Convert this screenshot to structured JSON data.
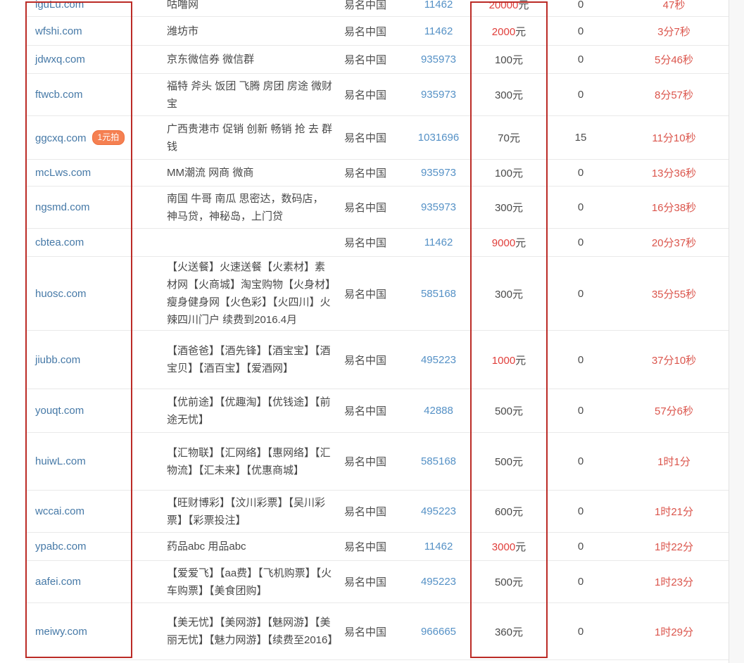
{
  "palette": {
    "domain_link_blue": "#4679a7",
    "id_link_blue": "#5591c6",
    "text_dark": "#4a4a4a",
    "price_highlight_red": "#e03e3a",
    "time_red": "#db554c",
    "annotation_box_red": "#bb2b26",
    "badge_orange": "#f58052",
    "row_separator": "#e9e9e9"
  },
  "badge": {
    "label": "1元拍"
  },
  "table": {
    "price_unit": "元",
    "rows": [
      {
        "domain": "iguLu.com",
        "badge": false,
        "desc": "咕噜网",
        "platform": "易名中国",
        "id": "11462",
        "price": "20000",
        "price_red": true,
        "bids": "0",
        "time": "47秒"
      },
      {
        "domain": "wfshi.com",
        "badge": false,
        "desc": "潍坊市",
        "platform": "易名中国",
        "id": "11462",
        "price": "2000",
        "price_red": true,
        "bids": "0",
        "time": "3分7秒"
      },
      {
        "domain": "jdwxq.com",
        "badge": false,
        "desc": "京东微信券 微信群",
        "platform": "易名中国",
        "id": "935973",
        "price": "100",
        "price_red": false,
        "bids": "0",
        "time": "5分46秒"
      },
      {
        "domain": "ftwcb.com",
        "badge": false,
        "desc": "福特 斧头 饭团 飞腾 房团 房途 微财宝",
        "platform": "易名中国",
        "id": "935973",
        "price": "300",
        "price_red": false,
        "bids": "0",
        "time": "8分57秒"
      },
      {
        "domain": "ggcxq.com",
        "badge": true,
        "desc": "广西贵港市 促销 创新 畅销 抢 去 群钱",
        "platform": "易名中国",
        "id": "1031696",
        "price": "70",
        "price_red": false,
        "bids": "15",
        "time": "11分10秒"
      },
      {
        "domain": "mcLws.com",
        "badge": false,
        "desc": "MM潮流 网商 微商",
        "platform": "易名中国",
        "id": "935973",
        "price": "100",
        "price_red": false,
        "bids": "0",
        "time": "13分36秒"
      },
      {
        "domain": "ngsmd.com",
        "badge": false,
        "desc": "南国 牛哥 南瓜 思密达，数码店，神马贷，神秘岛，上门贷",
        "platform": "易名中国",
        "id": "935973",
        "price": "300",
        "price_red": false,
        "bids": "0",
        "time": "16分38秒"
      },
      {
        "domain": "cbtea.com",
        "badge": false,
        "desc": "",
        "platform": "易名中国",
        "id": "11462",
        "price": "9000",
        "price_red": true,
        "bids": "0",
        "time": "20分37秒"
      },
      {
        "domain": "huosc.com",
        "badge": false,
        "desc": "【火送餐】火速送餐【火素材】素材网【火商城】淘宝购物【火身材】瘦身健身网【火色彩】【火四川】火辣四川门户 续费到2016.4月",
        "platform": "易名中国",
        "id": "585168",
        "price": "300",
        "price_red": false,
        "bids": "0",
        "time": "35分55秒"
      },
      {
        "domain": "jiubb.com",
        "badge": false,
        "desc": "【酒爸爸】【酒先锋】【酒宝宝】【酒宝贝】【酒百宝】【爱酒网】",
        "platform": "易名中国",
        "id": "495223",
        "price": "1000",
        "price_red": true,
        "bids": "0",
        "time": "37分10秒"
      },
      {
        "domain": "youqt.com",
        "badge": false,
        "desc": "【优前途】【优趣淘】【优钱途】【前途无忧】",
        "platform": "易名中国",
        "id": "42888",
        "price": "500",
        "price_red": false,
        "bids": "0",
        "time": "57分6秒"
      },
      {
        "domain": "huiwL.com",
        "badge": false,
        "desc": "【汇物联】【汇网络】【惠网络】【汇物流】【汇未来】【优惠商城】",
        "platform": "易名中国",
        "id": "585168",
        "price": "500",
        "price_red": false,
        "bids": "0",
        "time": "1时1分"
      },
      {
        "domain": "wccai.com",
        "badge": false,
        "desc": "【旺财博彩】【汶川彩票】【吴川彩票】【彩票投注】",
        "platform": "易名中国",
        "id": "495223",
        "price": "600",
        "price_red": false,
        "bids": "0",
        "time": "1时21分"
      },
      {
        "domain": "ypabc.com",
        "badge": false,
        "desc": "药品abc 用品abc",
        "platform": "易名中国",
        "id": "11462",
        "price": "3000",
        "price_red": true,
        "bids": "0",
        "time": "1时22分"
      },
      {
        "domain": "aafei.com",
        "badge": false,
        "desc": "【爱爱飞】【aa费】【飞机购票】【火车购票】【美食团购】",
        "platform": "易名中国",
        "id": "495223",
        "price": "500",
        "price_red": false,
        "bids": "0",
        "time": "1时23分"
      },
      {
        "domain": "meiwy.com",
        "badge": false,
        "desc": "【美无忧】【美网游】【魅网游】【美丽无忧】【魅力网游】【续费至2016】",
        "platform": "易名中国",
        "id": "966665",
        "price": "360",
        "price_red": false,
        "bids": "0",
        "time": "1时29分"
      }
    ]
  }
}
